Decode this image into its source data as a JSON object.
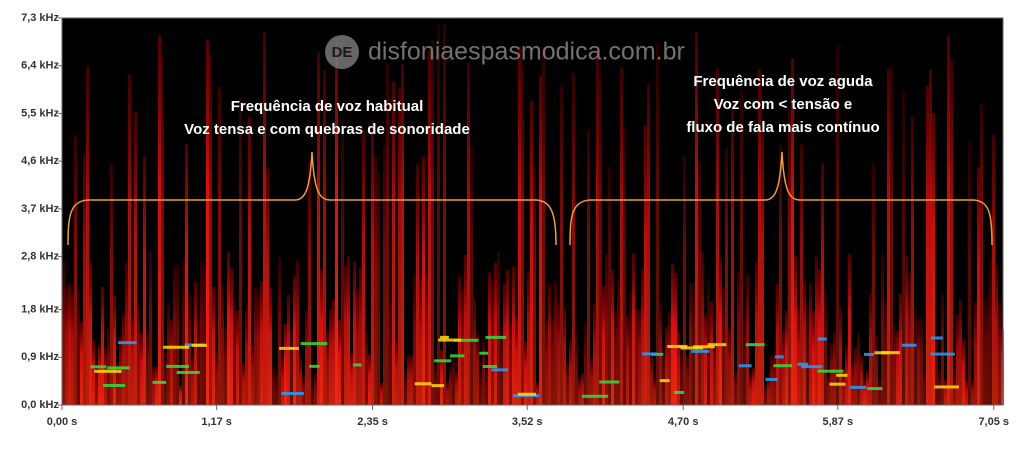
{
  "chart_data": {
    "type": "spectrogram",
    "watermark": {
      "logo": "DE",
      "text": "disfoniaespasmodica.com.br"
    },
    "annotations": [
      {
        "lines": [
          "Frequência de voz habitual",
          "Voz tensa e com quebras de sonoridade"
        ]
      },
      {
        "lines": [
          "Frequência de voz aguda",
          "Voz com < tensão e",
          "fluxo de fala mais contínuo"
        ]
      }
    ],
    "xlim": [
      0,
      7.12
    ],
    "ylim": [
      0,
      7.3
    ],
    "xticks": [
      {
        "value": 0,
        "label": "0,00 s"
      },
      {
        "value": 1.17,
        "label": "1,17 s"
      },
      {
        "value": 2.35,
        "label": "2,35 s"
      },
      {
        "value": 3.52,
        "label": "3,52 s"
      },
      {
        "value": 4.7,
        "label": "4,70 s"
      },
      {
        "value": 5.87,
        "label": "5,87 s"
      },
      {
        "value": 7.05,
        "label": "7,05 s"
      }
    ],
    "yticks": [
      {
        "value": 0,
        "label": "0,0 kHz"
      },
      {
        "value": 0.9,
        "label": "0,9 kHz"
      },
      {
        "value": 1.8,
        "label": "1,8 kHz"
      },
      {
        "value": 2.8,
        "label": "2,8 kHz"
      },
      {
        "value": 3.7,
        "label": "3,7 kHz"
      },
      {
        "value": 4.6,
        "label": "4,6 kHz"
      },
      {
        "value": 5.5,
        "label": "5,5 kHz"
      },
      {
        "value": 6.4,
        "label": "6,4 kHz"
      },
      {
        "value": 7.3,
        "label": "7,3 kHz"
      }
    ]
  }
}
